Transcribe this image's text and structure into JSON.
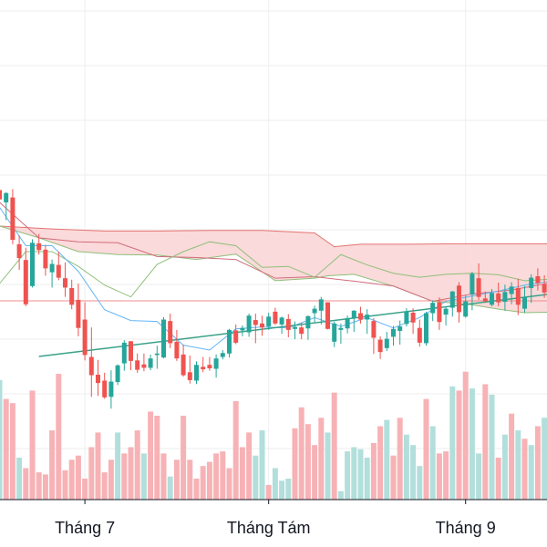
{
  "colors": {
    "up": "#26a69a",
    "down": "#ef5350",
    "up_volume": "#b2dfdb",
    "down_volume": "#f7b2b6",
    "cloud_fill": "#f9d3d3",
    "cloud_edge": "#e57373",
    "kijun": "#d36b7c",
    "tenkan": "#64b5f6",
    "lagging": "#8fbf7a",
    "trendline": "#3aa18a",
    "price_line": "#f28b8b",
    "grid": "#eeeeee",
    "axis": "#131722",
    "background": "#ffffff"
  },
  "chart_data": {
    "type": "candlestick",
    "grid": true,
    "indicators": [
      "ichimoku-cloud",
      "volume",
      "trendline",
      "price-line"
    ],
    "x_tick_labels": [
      {
        "label": "Tháng 7",
        "index": 13
      },
      {
        "label": "Tháng Tám",
        "index": 41
      },
      {
        "label": "Tháng 9",
        "index": 71
      }
    ],
    "ylim": [
      0,
      1000
    ],
    "price_line": 500,
    "candles": [
      [
        725,
        732,
        690,
        706
      ],
      [
        700,
        721,
        664,
        719
      ],
      [
        710,
        727,
        615,
        624
      ],
      [
        615,
        633,
        563,
        587
      ],
      [
        583,
        608,
        489,
        493
      ],
      [
        530,
        625,
        527,
        618
      ],
      [
        617,
        636,
        594,
        603
      ],
      [
        604,
        614,
        551,
        566
      ],
      [
        558,
        584,
        527,
        575
      ],
      [
        573,
        600,
        542,
        547
      ],
      [
        546,
        578,
        508,
        527
      ],
      [
        526,
        543,
        483,
        492
      ],
      [
        502,
        535,
        428,
        445
      ],
      [
        462,
        497,
        379,
        390
      ],
      [
        386,
        446,
        305,
        349
      ],
      [
        350,
        380,
        307,
        333
      ],
      [
        338,
        354,
        301,
        304
      ],
      [
        305,
        359,
        281,
        336
      ],
      [
        335,
        371,
        329,
        369
      ],
      [
        373,
        420,
        358,
        415
      ],
      [
        418,
        418,
        359,
        378
      ],
      [
        379,
        393,
        354,
        360
      ],
      [
        371,
        393,
        357,
        364
      ],
      [
        364,
        391,
        359,
        383
      ],
      [
        390,
        409,
        362,
        393
      ],
      [
        385,
        467,
        383,
        462
      ],
      [
        459,
        474,
        404,
        414
      ],
      [
        417,
        441,
        378,
        383
      ],
      [
        391,
        411,
        346,
        349
      ],
      [
        355,
        389,
        332,
        339
      ],
      [
        338,
        377,
        331,
        370
      ],
      [
        366,
        386,
        355,
        361
      ],
      [
        370,
        386,
        358,
        363
      ],
      [
        362,
        391,
        344,
        383
      ],
      [
        386,
        400,
        381,
        394
      ],
      [
        393,
        443,
        385,
        441
      ],
      [
        440,
        452,
        412,
        415
      ],
      [
        440,
        450,
        428,
        445
      ],
      [
        436,
        474,
        427,
        470
      ],
      [
        461,
        474,
        414,
        451
      ],
      [
        454,
        470,
        429,
        446
      ],
      [
        448,
        476,
        441,
        468
      ],
      [
        478,
        486,
        451,
        454
      ],
      [
        452,
        468,
        433,
        466
      ],
      [
        463,
        473,
        426,
        441
      ],
      [
        443,
        458,
        422,
        447
      ],
      [
        446,
        456,
        422,
        433
      ],
      [
        444,
        470,
        421,
        469
      ],
      [
        475,
        490,
        457,
        484
      ],
      [
        480,
        508,
        452,
        503
      ],
      [
        497,
        497,
        442,
        443
      ],
      [
        417,
        458,
        406,
        454
      ],
      [
        441,
        454,
        413,
        445
      ],
      [
        444,
        470,
        434,
        465
      ],
      [
        465,
        481,
        437,
        480
      ],
      [
        475,
        488,
        454,
        462
      ],
      [
        462,
        483,
        433,
        472
      ],
      [
        459,
        465,
        392,
        425
      ],
      [
        421,
        428,
        382,
        396
      ],
      [
        404,
        437,
        398,
        423
      ],
      [
        427,
        449,
        409,
        443
      ],
      [
        439,
        460,
        411,
        448
      ],
      [
        453,
        485,
        448,
        478
      ],
      [
        476,
        485,
        433,
        456
      ],
      [
        445,
        462,
        407,
        415
      ],
      [
        414,
        478,
        409,
        475
      ],
      [
        475,
        501,
        459,
        496
      ],
      [
        497,
        507,
        441,
        457
      ],
      [
        472,
        489,
        450,
        484
      ],
      [
        486,
        520,
        468,
        519
      ],
      [
        531,
        538,
        456,
        477
      ],
      [
        468,
        512,
        466,
        499
      ],
      [
        513,
        559,
        481,
        555
      ],
      [
        546,
        576,
        502,
        508
      ],
      [
        505,
        519,
        496,
        499
      ],
      [
        492,
        524,
        489,
        516
      ],
      [
        515,
        537,
        489,
        497
      ],
      [
        498,
        533,
        480,
        518
      ],
      [
        514,
        538,
        493,
        529
      ],
      [
        526,
        545,
        471,
        492
      ],
      [
        484,
        530,
        476,
        507
      ],
      [
        526,
        554,
        496,
        547
      ],
      [
        550,
        566,
        521,
        536
      ],
      [
        534,
        552,
        506,
        517
      ]
    ],
    "volume": [
      [
        57,
        "up"
      ],
      [
        48,
        "down"
      ],
      [
        46,
        "down"
      ],
      [
        20,
        "up"
      ],
      [
        15,
        "down"
      ],
      [
        52,
        "down"
      ],
      [
        13,
        "down"
      ],
      [
        12,
        "down"
      ],
      [
        33,
        "down"
      ],
      [
        60,
        "down"
      ],
      [
        14,
        "down"
      ],
      [
        19,
        "down"
      ],
      [
        21,
        "down"
      ],
      [
        10,
        "down"
      ],
      [
        25,
        "down"
      ],
      [
        32,
        "down"
      ],
      [
        13,
        "down"
      ],
      [
        19,
        "down"
      ],
      [
        32,
        "up"
      ],
      [
        22,
        "down"
      ],
      [
        25,
        "down"
      ],
      [
        33,
        "down"
      ],
      [
        22,
        "up"
      ],
      [
        42,
        "down"
      ],
      [
        40,
        "down"
      ],
      [
        22,
        "down"
      ],
      [
        11,
        "up"
      ],
      [
        19,
        "down"
      ],
      [
        40,
        "down"
      ],
      [
        19,
        "down"
      ],
      [
        10,
        "down"
      ],
      [
        16,
        "down"
      ],
      [
        18,
        "down"
      ],
      [
        22,
        "down"
      ],
      [
        23,
        "down"
      ],
      [
        15,
        "down"
      ],
      [
        47,
        "down"
      ],
      [
        25,
        "down"
      ],
      [
        32,
        "down"
      ],
      [
        21,
        "up"
      ],
      [
        33,
        "up"
      ],
      [
        7,
        "down"
      ],
      [
        15,
        "up"
      ],
      [
        9,
        "up"
      ],
      [
        10,
        "up"
      ],
      [
        34,
        "down"
      ],
      [
        44,
        "down"
      ],
      [
        36,
        "down"
      ],
      [
        26,
        "down"
      ],
      [
        39,
        "down"
      ],
      [
        32,
        "up"
      ],
      [
        51,
        "down"
      ],
      [
        4,
        "up"
      ],
      [
        23,
        "up"
      ],
      [
        25,
        "up"
      ],
      [
        24,
        "up"
      ],
      [
        20,
        "up"
      ],
      [
        27,
        "down"
      ],
      [
        35,
        "down"
      ],
      [
        38,
        "up"
      ],
      [
        21,
        "down"
      ],
      [
        39,
        "down"
      ],
      [
        31,
        "up"
      ],
      [
        26,
        "up"
      ],
      [
        16,
        "up"
      ],
      [
        48,
        "down"
      ],
      [
        35,
        "up"
      ],
      [
        22,
        "down"
      ],
      [
        23,
        "down"
      ],
      [
        54,
        "up"
      ],
      [
        52,
        "down"
      ],
      [
        61,
        "down"
      ],
      [
        53,
        "up"
      ],
      [
        22,
        "up"
      ],
      [
        55,
        "down"
      ],
      [
        50,
        "up"
      ],
      [
        20,
        "down"
      ],
      [
        31,
        "up"
      ],
      [
        41,
        "down"
      ],
      [
        33,
        "up"
      ],
      [
        29,
        "down"
      ],
      [
        26,
        "up"
      ],
      [
        35,
        "down"
      ],
      [
        39,
        "up"
      ]
    ],
    "cloud_upper": [
      [
        0,
        652
      ],
      [
        8,
        646
      ],
      [
        16,
        642
      ],
      [
        24,
        642
      ],
      [
        32,
        643
      ],
      [
        40,
        643
      ],
      [
        48,
        638
      ],
      [
        51,
        610
      ],
      [
        55,
        615
      ],
      [
        62,
        615
      ],
      [
        70,
        616
      ],
      [
        84,
        616
      ]
    ],
    "cloud_lower": [
      [
        0,
        652
      ],
      [
        6,
        628
      ],
      [
        12,
        600
      ],
      [
        18,
        594
      ],
      [
        24,
        593
      ],
      [
        30,
        584
      ],
      [
        36,
        595
      ],
      [
        42,
        541
      ],
      [
        48,
        546
      ],
      [
        50,
        551
      ],
      [
        54,
        554
      ],
      [
        60,
        530
      ],
      [
        66,
        499
      ],
      [
        72,
        492
      ],
      [
        76,
        483
      ],
      [
        80,
        476
      ],
      [
        84,
        477
      ]
    ],
    "kijun": [
      [
        0,
        700
      ],
      [
        6,
        628
      ],
      [
        12,
        620
      ],
      [
        18,
        618
      ],
      [
        24,
        590
      ],
      [
        30,
        588
      ],
      [
        36,
        584
      ],
      [
        42,
        546
      ],
      [
        48,
        549
      ],
      [
        54,
        540
      ],
      [
        60,
        530
      ],
      [
        66,
        499
      ],
      [
        72,
        514
      ],
      [
        78,
        522
      ],
      [
        84,
        537
      ]
    ],
    "tenkan": [
      [
        0,
        690
      ],
      [
        4,
        612
      ],
      [
        8,
        612
      ],
      [
        12,
        560
      ],
      [
        16,
        482
      ],
      [
        20,
        460
      ],
      [
        24,
        458
      ],
      [
        28,
        410
      ],
      [
        32,
        400
      ],
      [
        36,
        443
      ],
      [
        40,
        447
      ],
      [
        44,
        445
      ],
      [
        48,
        466
      ],
      [
        52,
        448
      ],
      [
        56,
        466
      ],
      [
        60,
        445
      ],
      [
        64,
        466
      ],
      [
        68,
        499
      ],
      [
        72,
        510
      ],
      [
        76,
        520
      ],
      [
        80,
        532
      ],
      [
        84,
        540
      ]
    ],
    "lagging": [
      [
        0,
        535
      ],
      [
        4,
        600
      ],
      [
        8,
        600
      ],
      [
        12,
        570
      ],
      [
        16,
        532
      ],
      [
        20,
        508
      ],
      [
        24,
        574
      ],
      [
        28,
        600
      ],
      [
        32,
        620
      ],
      [
        36,
        612
      ],
      [
        40,
        568
      ],
      [
        44,
        570
      ],
      [
        48,
        548
      ],
      [
        52,
        594
      ],
      [
        56,
        573
      ],
      [
        60,
        556
      ],
      [
        64,
        548
      ],
      [
        68,
        554
      ],
      [
        72,
        556
      ],
      [
        76,
        553
      ],
      [
        80,
        541
      ],
      [
        84,
        544
      ]
    ],
    "trendline": {
      "start": [
        6,
        387
      ],
      "end": [
        84,
        514
      ]
    }
  }
}
